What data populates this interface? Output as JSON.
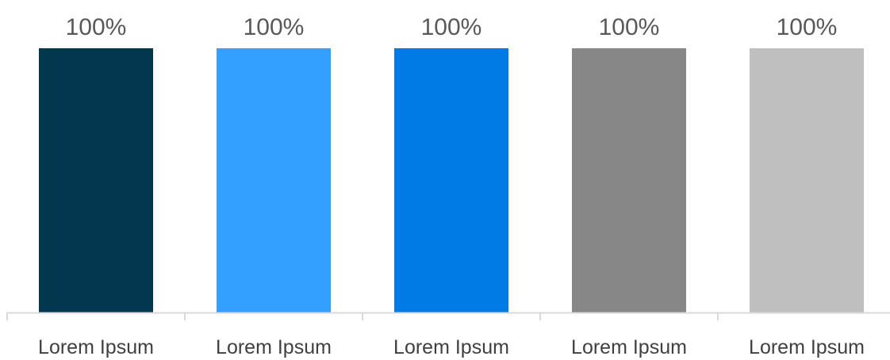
{
  "chart_data": {
    "type": "bar",
    "categories": [
      "Lorem Ipsum",
      "Lorem Ipsum",
      "Lorem Ipsum",
      "Lorem Ipsum",
      "Lorem Ipsum"
    ],
    "values": [
      100,
      100,
      100,
      100,
      100
    ],
    "value_labels": [
      "100%",
      "100%",
      "100%",
      "100%",
      "100%"
    ],
    "colors": [
      "#02374f",
      "#339ffe",
      "#007ae5",
      "#878787",
      "#bfbfbf"
    ],
    "axis_color": "#d9d9d9",
    "ylim": [
      0,
      100
    ],
    "grid": false,
    "title": "",
    "xlabel": "",
    "ylabel": ""
  }
}
